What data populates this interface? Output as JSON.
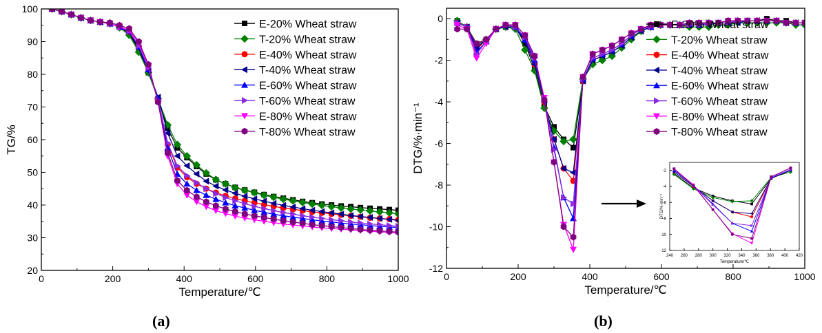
{
  "panel_labels": [
    "(a)",
    "(b)"
  ],
  "series_colors": [
    "#000000",
    "#008000",
    "#ff0000",
    "#00008b",
    "#0000ff",
    "#8a2be2",
    "#ff00ff",
    "#800080"
  ],
  "series_markers": [
    "square",
    "diamond",
    "circle",
    "triangle-left",
    "triangle-up",
    "triangle-right",
    "triangle-down",
    "hexagon"
  ],
  "chart_data": [
    {
      "type": "line",
      "panel": "(a)",
      "xlabel": "Temperature/℃",
      "ylabel": "TG/%",
      "xlim": [
        0,
        1000
      ],
      "ylim": [
        20,
        100
      ],
      "xticks": [
        0,
        200,
        400,
        600,
        800,
        1000
      ],
      "yticks": [
        20,
        30,
        40,
        50,
        60,
        70,
        80,
        90,
        100
      ],
      "legend": "top-right",
      "x": [
        30,
        57,
        84,
        111,
        138,
        165,
        192,
        219,
        246,
        273,
        300,
        327,
        354,
        381,
        408,
        435,
        462,
        489,
        516,
        543,
        570,
        597,
        624,
        651,
        678,
        705,
        732,
        759,
        786,
        813,
        840,
        867,
        894,
        921,
        948,
        975,
        1000
      ],
      "series": [
        {
          "name": "E-20% Wheat straw",
          "values": [
            100,
            99.2,
            98.3,
            97.3,
            96.5,
            96,
            95.5,
            94.5,
            92.5,
            87.5,
            80.5,
            72.5,
            63.5,
            57.5,
            54.5,
            51.8,
            49.5,
            47.7,
            46.5,
            45.4,
            44.6,
            43.9,
            43.2,
            42.6,
            42.1,
            41.6,
            41.1,
            40.7,
            40.3,
            40.0,
            39.7,
            39.5,
            39.2,
            39.0,
            38.8,
            38.6,
            38.4
          ]
        },
        {
          "name": "T-20% Wheat straw",
          "values": [
            100,
            99.2,
            98.3,
            97.3,
            96.5,
            96,
            95.5,
            94.3,
            92.0,
            86.8,
            80.5,
            72.5,
            64.5,
            58.5,
            55.0,
            52.3,
            49.8,
            47.8,
            46.5,
            45.3,
            44.5,
            43.8,
            43.0,
            42.4,
            41.8,
            41.3,
            40.8,
            40.3,
            39.9,
            39.5,
            39.1,
            38.8,
            38.5,
            38.2,
            37.9,
            37.6,
            37.3
          ]
        },
        {
          "name": "E-40% Wheat straw",
          "values": [
            100,
            99.2,
            98.3,
            97.3,
            96.5,
            96,
            95.5,
            94.5,
            93.0,
            88.5,
            81.5,
            72.5,
            58.5,
            51.5,
            48.5,
            46.5,
            45.0,
            43.8,
            42.8,
            42.0,
            41.3,
            40.7,
            40.1,
            39.6,
            39.1,
            38.7,
            38.3,
            37.9,
            37.6,
            37.3,
            37.0,
            36.7,
            36.4,
            36.1,
            35.9,
            35.7,
            35.5
          ]
        },
        {
          "name": "T-40% Wheat straw",
          "values": [
            100,
            99.2,
            98.3,
            97.3,
            96.5,
            96,
            95.5,
            94.5,
            92.8,
            88.0,
            81.0,
            73.0,
            62.0,
            55.0,
            52.0,
            49.5,
            47.3,
            45.8,
            44.6,
            43.6,
            42.7,
            41.9,
            41.2,
            40.5,
            39.9,
            39.4,
            38.9,
            38.4,
            38.0,
            37.6,
            37.2,
            36.8,
            36.5,
            36.2,
            35.9,
            35.6,
            35.3
          ]
        },
        {
          "name": "E-60% Wheat straw",
          "values": [
            100,
            99.2,
            98.3,
            97.3,
            96.5,
            96,
            95.5,
            94.5,
            93.2,
            88.5,
            81.5,
            72.5,
            57.5,
            49.5,
            46.5,
            44.5,
            43.0,
            41.8,
            40.7,
            39.8,
            39.1,
            38.4,
            37.8,
            37.2,
            36.7,
            36.3,
            35.9,
            35.5,
            35.1,
            34.8,
            34.5,
            34.2,
            34.0,
            33.7,
            33.5,
            33.3,
            33.1
          ]
        },
        {
          "name": "T-60% Wheat straw",
          "values": [
            100,
            99.2,
            98.3,
            97.3,
            96.5,
            96,
            95.5,
            94.5,
            93.2,
            88.7,
            82.0,
            72.0,
            59.0,
            52.0,
            49.0,
            46.8,
            45.0,
            43.5,
            42.3,
            41.3,
            40.4,
            39.6,
            38.9,
            38.3,
            37.7,
            37.2,
            36.7,
            36.3,
            35.9,
            35.5,
            35.2,
            34.8,
            34.5,
            34.2,
            34.0,
            33.7,
            33.5
          ]
        },
        {
          "name": "E-80% Wheat straw",
          "values": [
            100,
            99.2,
            98.3,
            97.3,
            96.5,
            96,
            95.5,
            94.5,
            93.5,
            89.5,
            82.5,
            71.5,
            55.0,
            46.5,
            43.0,
            41.0,
            39.5,
            38.3,
            37.4,
            36.6,
            36.0,
            35.5,
            35.0,
            34.6,
            34.2,
            33.9,
            33.6,
            33.3,
            33.0,
            32.8,
            32.6,
            32.4,
            32.2,
            32.0,
            31.8,
            31.6,
            31.4
          ]
        },
        {
          "name": "T-80% Wheat straw",
          "values": [
            100,
            99.2,
            98.3,
            97.3,
            96.5,
            96,
            95.8,
            95.0,
            94.0,
            90.0,
            83.0,
            71.5,
            56.0,
            47.5,
            44.5,
            42.5,
            41.0,
            39.8,
            38.8,
            38.0,
            37.3,
            36.7,
            36.2,
            35.7,
            35.2,
            34.8,
            34.4,
            34.0,
            33.7,
            33.4,
            33.1,
            32.8,
            32.5,
            32.3,
            32.1,
            31.9,
            31.7
          ]
        }
      ]
    },
    {
      "type": "line",
      "panel": "(b)",
      "xlabel": "Temperature/℃",
      "ylabel": "DTG/%·min⁻¹",
      "xlim": [
        0,
        1000
      ],
      "ylim": [
        -12,
        0.5
      ],
      "xticks": [
        0,
        200,
        400,
        600,
        800,
        1000
      ],
      "yticks": [
        0,
        -2,
        -4,
        -6,
        -8,
        -10,
        -12
      ],
      "legend": "top-right",
      "x": [
        30,
        57,
        84,
        111,
        138,
        165,
        192,
        219,
        246,
        273,
        300,
        327,
        354,
        381,
        408,
        435,
        462,
        489,
        516,
        543,
        570,
        597,
        624,
        651,
        678,
        705,
        732,
        759,
        786,
        813,
        840,
        867,
        894,
        921,
        948,
        975,
        1000
      ],
      "series": [
        {
          "name": "E-20% Wheat straw",
          "values": [
            -0.1,
            -0.4,
            -1.2,
            -1.0,
            -0.5,
            -0.4,
            -0.4,
            -1.2,
            -2.4,
            -4.2,
            -5.2,
            -5.8,
            -6.2,
            -3.0,
            -2.0,
            -1.8,
            -1.6,
            -1.3,
            -0.9,
            -0.6,
            -0.4,
            -0.3,
            -0.3,
            -0.3,
            -0.3,
            -0.3,
            -0.3,
            -0.2,
            -0.2,
            -0.1,
            -0.1,
            -0.1,
            0.0,
            -0.1,
            -0.1,
            -0.2,
            -0.2
          ]
        },
        {
          "name": "T-20% Wheat straw",
          "values": [
            -0.1,
            -0.4,
            -1.3,
            -1.0,
            -0.5,
            -0.4,
            -0.5,
            -1.5,
            -2.5,
            -4.3,
            -5.4,
            -5.9,
            -5.8,
            -2.9,
            -2.2,
            -2.0,
            -1.8,
            -1.4,
            -1.0,
            -0.6,
            -0.4,
            -0.3,
            -0.3,
            -0.3,
            -0.4,
            -0.4,
            -0.4,
            -0.3,
            -0.3,
            -0.2,
            -0.2,
            -0.2,
            -0.2,
            -0.2,
            -0.2,
            -0.3,
            -0.3
          ]
        },
        {
          "name": "E-40% Wheat straw",
          "values": [
            -0.2,
            -0.4,
            -1.5,
            -1.0,
            -0.5,
            -0.3,
            -0.4,
            -1.0,
            -2.2,
            -4.0,
            -5.8,
            -7.2,
            -7.8,
            -3.0,
            -1.9,
            -1.7,
            -1.5,
            -1.2,
            -0.8,
            -0.5,
            -0.4,
            -0.3,
            -0.3,
            -0.3,
            -0.3,
            -0.3,
            -0.2,
            -0.2,
            -0.2,
            -0.1,
            -0.1,
            -0.1,
            -0.1,
            -0.1,
            -0.2,
            -0.2,
            -0.2
          ]
        },
        {
          "name": "T-40% Wheat straw",
          "values": [
            -0.2,
            -0.4,
            -1.4,
            -1.0,
            -0.5,
            -0.4,
            -0.4,
            -1.1,
            -2.2,
            -4.0,
            -5.8,
            -7.2,
            -7.4,
            -3.0,
            -2.0,
            -1.8,
            -1.6,
            -1.3,
            -0.9,
            -0.6,
            -0.4,
            -0.3,
            -0.3,
            -0.3,
            -0.3,
            -0.3,
            -0.3,
            -0.2,
            -0.2,
            -0.2,
            -0.1,
            -0.1,
            -0.1,
            -0.1,
            -0.2,
            -0.2,
            -0.2
          ]
        },
        {
          "name": "E-60% Wheat straw",
          "values": [
            -0.2,
            -0.4,
            -1.6,
            -1.1,
            -0.5,
            -0.3,
            -0.4,
            -1.0,
            -2.0,
            -3.9,
            -6.2,
            -8.6,
            -9.6,
            -2.9,
            -1.9,
            -1.7,
            -1.5,
            -1.2,
            -0.8,
            -0.5,
            -0.4,
            -0.3,
            -0.3,
            -0.3,
            -0.3,
            -0.3,
            -0.2,
            -0.2,
            -0.2,
            -0.1,
            -0.1,
            -0.1,
            -0.1,
            -0.1,
            -0.2,
            -0.2,
            -0.2
          ]
        },
        {
          "name": "T-60% Wheat straw",
          "values": [
            -0.2,
            -0.4,
            -1.7,
            -1.1,
            -0.5,
            -0.3,
            -0.4,
            -0.9,
            -1.9,
            -3.9,
            -6.3,
            -8.6,
            -8.9,
            -2.9,
            -1.9,
            -1.7,
            -1.5,
            -1.2,
            -0.8,
            -0.5,
            -0.4,
            -0.3,
            -0.3,
            -0.3,
            -0.3,
            -0.3,
            -0.2,
            -0.2,
            -0.2,
            -0.1,
            -0.1,
            -0.1,
            -0.1,
            -0.1,
            -0.2,
            -0.2,
            -0.2
          ]
        },
        {
          "name": "E-80% Wheat straw",
          "values": [
            -0.3,
            -0.5,
            -1.9,
            -1.2,
            -0.5,
            -0.3,
            -0.3,
            -0.8,
            -1.8,
            -3.8,
            -6.9,
            -9.9,
            -11.1,
            -2.8,
            -1.7,
            -1.5,
            -1.3,
            -1.0,
            -0.7,
            -0.5,
            -0.3,
            -0.3,
            -0.3,
            -0.3,
            -0.2,
            -0.2,
            -0.2,
            -0.2,
            -0.1,
            -0.1,
            -0.1,
            -0.1,
            -0.1,
            -0.1,
            -0.2,
            -0.2,
            -0.2
          ]
        },
        {
          "name": "T-80% Wheat straw",
          "values": [
            -0.5,
            -0.5,
            -1.2,
            -1.0,
            -0.5,
            -0.3,
            -0.3,
            -0.8,
            -1.8,
            -3.9,
            -6.9,
            -10.0,
            -10.5,
            -2.8,
            -1.7,
            -1.5,
            -1.3,
            -1.0,
            -0.7,
            -0.5,
            -0.3,
            -0.3,
            -0.3,
            -0.3,
            -0.2,
            -0.2,
            -0.2,
            -0.2,
            -0.1,
            -0.1,
            -0.1,
            -0.1,
            -0.1,
            -0.1,
            -0.2,
            -0.2,
            -0.2
          ]
        }
      ]
    },
    {
      "type": "line",
      "panel": "(b) inset",
      "xlabel": "Temperature/℃",
      "ylabel": "DTG/%·min⁻¹",
      "xlim": [
        240,
        420
      ],
      "ylim": [
        -12,
        -1
      ],
      "xticks": [
        240,
        260,
        280,
        300,
        320,
        340,
        360,
        380,
        400,
        420
      ],
      "yticks": [
        -2,
        -4,
        -6,
        -8,
        -10,
        -12
      ],
      "x": [
        246,
        273,
        300,
        327,
        354,
        381,
        408
      ],
      "series": [
        {
          "name": "E-20% Wheat straw",
          "values": [
            -2.4,
            -4.2,
            -5.2,
            -5.8,
            -6.2,
            -3.0,
            -2.0
          ]
        },
        {
          "name": "T-20% Wheat straw",
          "values": [
            -2.5,
            -4.3,
            -5.4,
            -5.9,
            -5.8,
            -2.9,
            -2.2
          ]
        },
        {
          "name": "E-40% Wheat straw",
          "values": [
            -2.2,
            -4.0,
            -5.8,
            -7.2,
            -7.8,
            -3.0,
            -1.9
          ]
        },
        {
          "name": "T-40% Wheat straw",
          "values": [
            -2.2,
            -4.0,
            -5.8,
            -7.2,
            -7.4,
            -3.0,
            -2.0
          ]
        },
        {
          "name": "E-60% Wheat straw",
          "values": [
            -2.0,
            -3.9,
            -6.2,
            -8.6,
            -9.6,
            -2.9,
            -1.9
          ]
        },
        {
          "name": "T-60% Wheat straw",
          "values": [
            -1.9,
            -3.9,
            -6.3,
            -8.6,
            -8.9,
            -2.9,
            -1.9
          ]
        },
        {
          "name": "E-80% Wheat straw",
          "values": [
            -1.8,
            -3.8,
            -6.9,
            -9.9,
            -11.1,
            -2.8,
            -1.7
          ]
        },
        {
          "name": "T-80% Wheat straw",
          "values": [
            -1.8,
            -3.9,
            -6.9,
            -10.0,
            -10.5,
            -2.8,
            -1.7
          ]
        }
      ]
    }
  ]
}
